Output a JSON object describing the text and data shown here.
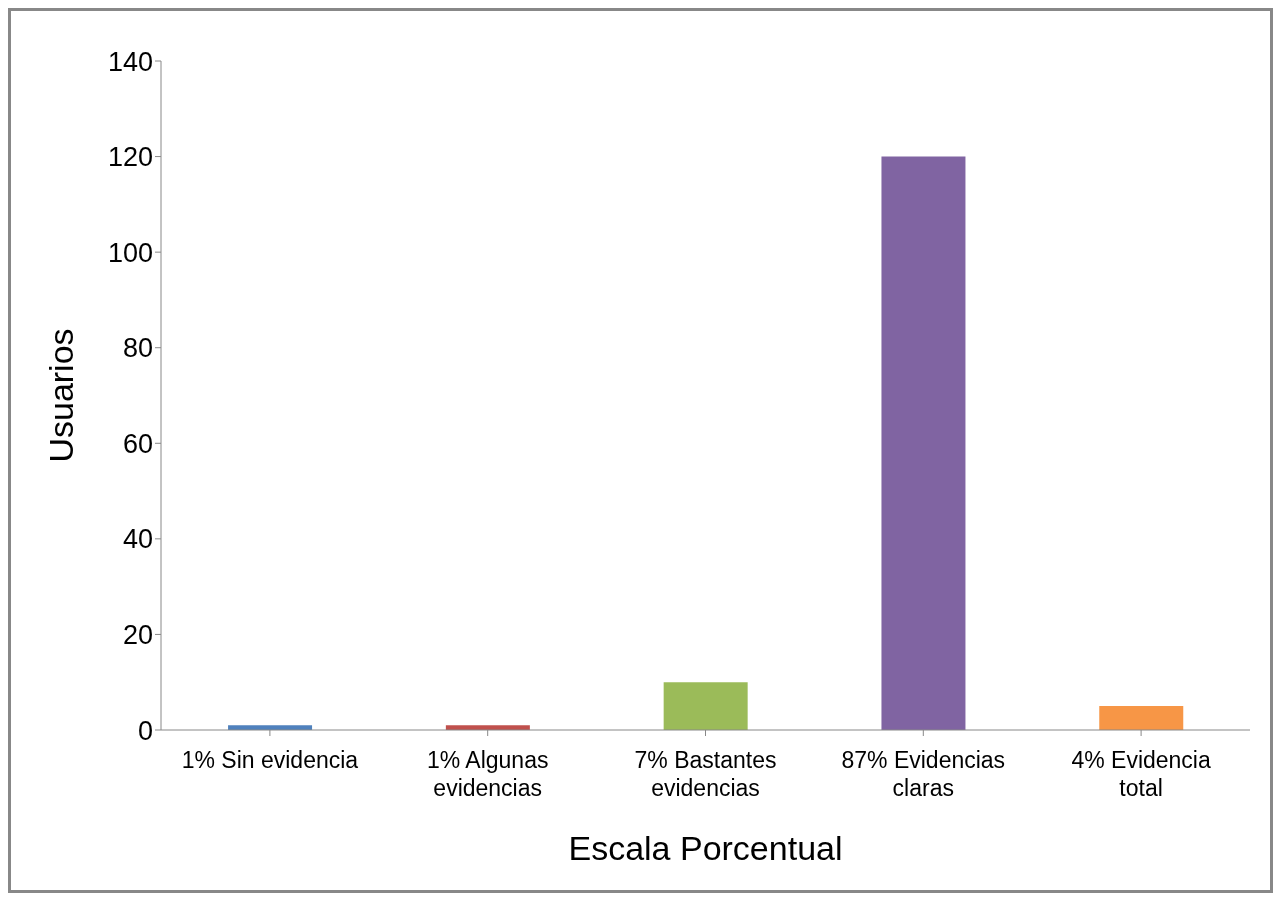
{
  "chart_data": {
    "type": "bar",
    "xlabel": "Escala Porcentual",
    "ylabel": "Usuarios",
    "categories": [
      "1% Sin evidencia",
      "1% Algunas evidencias",
      "7% Bastantes evidencias",
      "87% Evidencias claras",
      "4% Evidencia total"
    ],
    "values": [
      1,
      1,
      10,
      120,
      5
    ],
    "colors": [
      "#4f81bd",
      "#c0504d",
      "#9bbb59",
      "#8064a2",
      "#f79646"
    ],
    "ylim": [
      0,
      140
    ],
    "yticks": [
      0,
      20,
      40,
      60,
      80,
      100,
      120,
      140
    ],
    "grid": false,
    "legend": false
  }
}
